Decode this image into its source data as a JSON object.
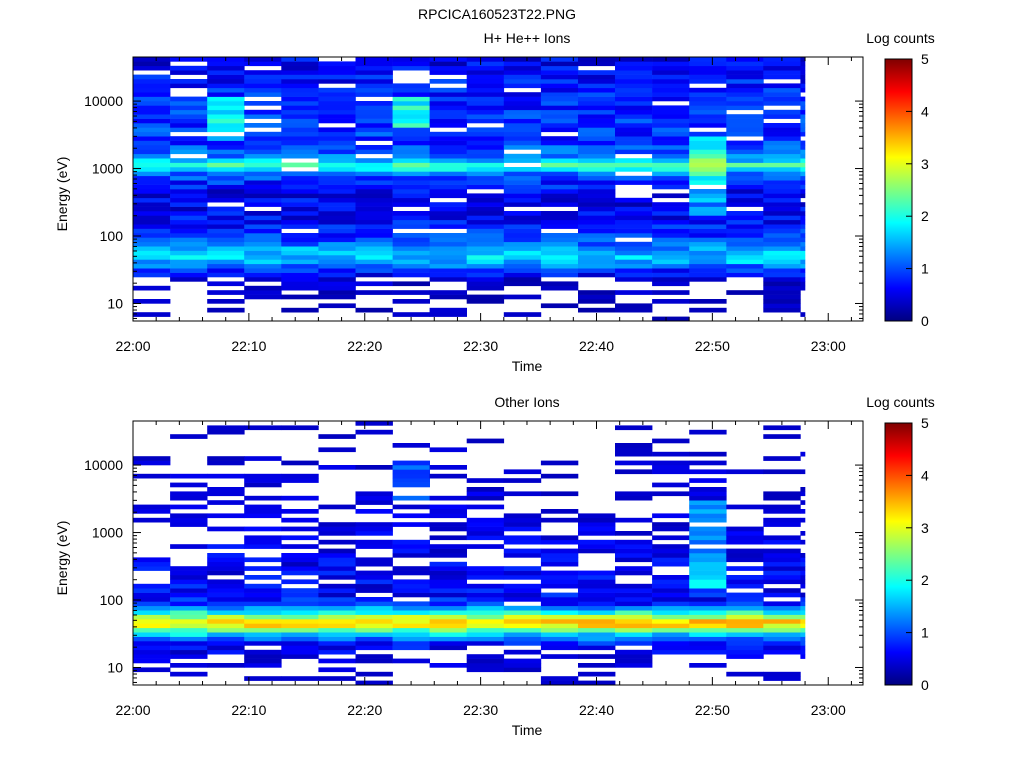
{
  "page_title": "RPCICA160523T22.PNG",
  "colorbar_colors": [
    "#00007f",
    "#0000ff",
    "#007fff",
    "#00ffff",
    "#7fff7f",
    "#ffff00",
    "#ff7f00",
    "#ff0000",
    "#7f0000"
  ],
  "chart_data": [
    {
      "type": "heatmap",
      "title": "H+ He++ Ions",
      "xlabel": "Time",
      "ylabel": "Energy (eV)",
      "x_ticks": [
        "22:00",
        "22:10",
        "22:20",
        "22:30",
        "22:40",
        "22:50",
        "23:00"
      ],
      "x_range_minutes": [
        0,
        63
      ],
      "data_end_minute": 58,
      "time_bin_minutes": 3.2,
      "y_scale": "log",
      "y_ticks": [
        10,
        100,
        1000,
        10000
      ],
      "y_tick_labels": [
        "10",
        "100",
        "1000",
        "10000"
      ],
      "y_range_eV": [
        5.5,
        45000
      ],
      "colorbar": {
        "label": "Log counts",
        "ticks": [
          "0",
          "1",
          "2",
          "3",
          "4",
          "5"
        ],
        "range": [
          0,
          5
        ]
      },
      "base_profile": [
        {
          "eV": 7,
          "log_counts": 0.05
        },
        {
          "eV": 12,
          "log_counts": 0.1
        },
        {
          "eV": 22,
          "log_counts": 0.25
        },
        {
          "eV": 32,
          "log_counts": 0.9
        },
        {
          "eV": 45,
          "log_counts": 1.7
        },
        {
          "eV": 60,
          "log_counts": 1.5
        },
        {
          "eV": 90,
          "log_counts": 0.9
        },
        {
          "eV": 180,
          "log_counts": 0.6
        },
        {
          "eV": 450,
          "log_counts": 0.55
        },
        {
          "eV": 800,
          "log_counts": 1.0
        },
        {
          "eV": 1100,
          "log_counts": 2.2
        },
        {
          "eV": 1500,
          "log_counts": 1.2
        },
        {
          "eV": 2500,
          "log_counts": 0.85
        },
        {
          "eV": 5000,
          "log_counts": 0.9
        },
        {
          "eV": 10000,
          "log_counts": 0.8
        },
        {
          "eV": 20000,
          "log_counts": 0.7
        },
        {
          "eV": 40000,
          "log_counts": 0.55
        }
      ],
      "enhancements": [
        {
          "start_minute": 6.4,
          "end_minute": 9.6,
          "eV_min": 2500,
          "eV_max": 12000,
          "add": 0.9
        },
        {
          "start_minute": 22.4,
          "end_minute": 25.6,
          "eV_min": 4000,
          "eV_max": 12000,
          "add": 1.1
        },
        {
          "start_minute": 48.0,
          "end_minute": 51.2,
          "eV_min": 200,
          "eV_max": 3000,
          "add": 0.8
        }
      ],
      "blank_threshold": 0.2
    },
    {
      "type": "heatmap",
      "title": "Other Ions",
      "xlabel": "Time",
      "ylabel": "Energy (eV)",
      "x_ticks": [
        "22:00",
        "22:10",
        "22:20",
        "22:30",
        "22:40",
        "22:50",
        "23:00"
      ],
      "x_range_minutes": [
        0,
        63
      ],
      "data_end_minute": 58,
      "time_bin_minutes": 3.2,
      "y_scale": "log",
      "y_ticks": [
        10,
        100,
        1000,
        10000
      ],
      "y_tick_labels": [
        "10",
        "100",
        "1000",
        "10000"
      ],
      "y_range_eV": [
        5.5,
        45000
      ],
      "colorbar": {
        "label": "Log counts",
        "ticks": [
          "0",
          "1",
          "2",
          "3",
          "4",
          "5"
        ],
        "range": [
          0,
          5
        ]
      },
      "base_profile": [
        {
          "eV": 7,
          "log_counts": 0.1
        },
        {
          "eV": 13,
          "log_counts": 0.3
        },
        {
          "eV": 22,
          "log_counts": 0.6
        },
        {
          "eV": 30,
          "log_counts": 1.5
        },
        {
          "eV": 38,
          "log_counts": 2.6
        },
        {
          "eV": 45,
          "log_counts": 3.6
        },
        {
          "eV": 55,
          "log_counts": 2.8
        },
        {
          "eV": 68,
          "log_counts": 1.8
        },
        {
          "eV": 90,
          "log_counts": 0.7
        },
        {
          "eV": 200,
          "log_counts": 0.55
        },
        {
          "eV": 700,
          "log_counts": 0.4
        },
        {
          "eV": 2000,
          "log_counts": 0.3
        },
        {
          "eV": 8000,
          "log_counts": 0.2
        },
        {
          "eV": 40000,
          "log_counts": 0.05
        }
      ],
      "enhancements": [
        {
          "start_minute": 22.4,
          "end_minute": 25.6,
          "eV_min": 3000,
          "eV_max": 12000,
          "add": 0.8
        },
        {
          "start_minute": 48.0,
          "end_minute": 51.2,
          "eV_min": 150,
          "eV_max": 3000,
          "add": 1.0
        }
      ],
      "blank_threshold": 0.3
    }
  ]
}
